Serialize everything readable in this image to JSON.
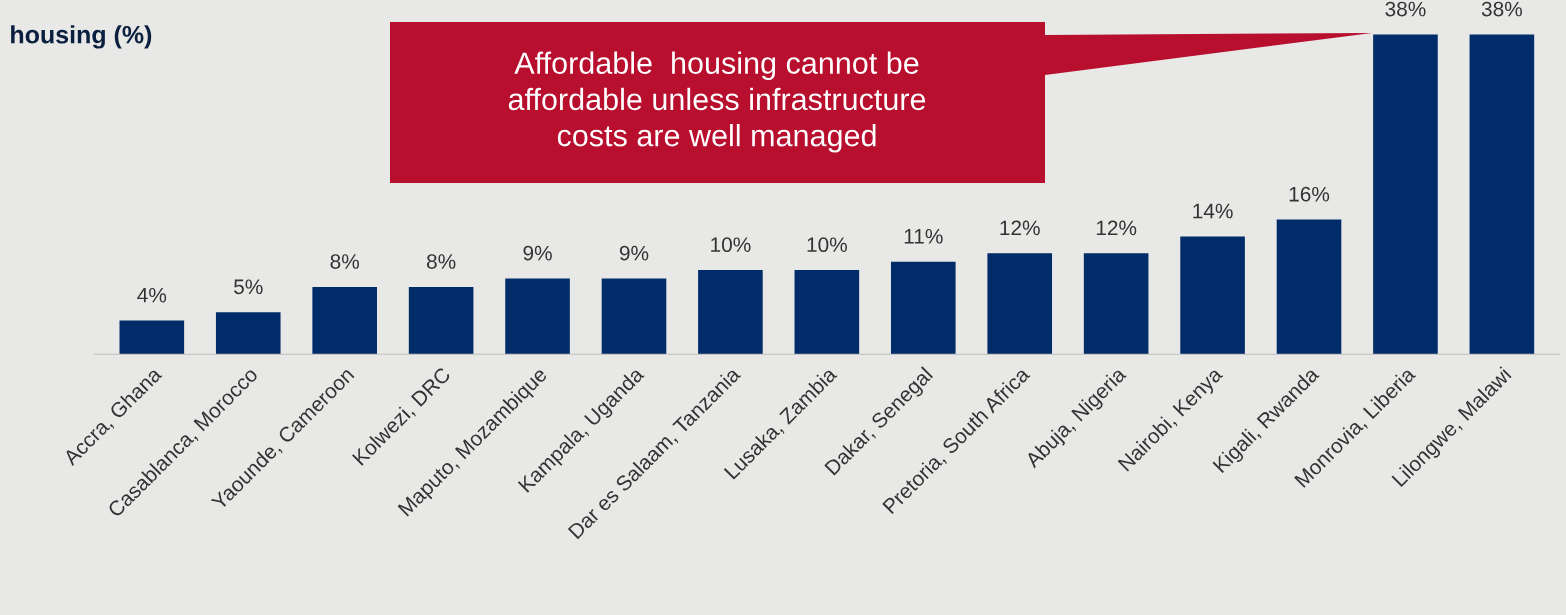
{
  "chart_data": {
    "type": "bar",
    "title": "housing (%)",
    "categories": [
      "Accra, Ghana",
      "Casablanca, Morocco",
      "Yaounde, Cameroon",
      "Kolwezi, DRC",
      "Maputo, Mozambique",
      "Kampala, Uganda",
      "Dar es Salaam, Tanzania",
      "Lusaka, Zambia",
      "Dakar, Senegal",
      "Pretoria, South Africa",
      "Abuja, Nigeria",
      "Nairobi, Kenya",
      "Kigali, Rwanda",
      "Monrovia, Liberia",
      "Lilongwe, Malawi"
    ],
    "values": [
      4,
      5,
      8,
      8,
      9,
      9,
      10,
      10,
      11,
      12,
      12,
      14,
      16,
      38,
      38
    ],
    "value_labels": [
      "4%",
      "5%",
      "8%",
      "8%",
      "9%",
      "9%",
      "10%",
      "10%",
      "11%",
      "12%",
      "12%",
      "14%",
      "16%",
      "38%",
      "38%"
    ],
    "color": "#002c6a",
    "annotations": [
      "Affordable  housing cannot be\naffordable unless infrastructure\ncosts are well managed"
    ],
    "tick_labels": "x",
    "grid": false,
    "legend": false
  }
}
